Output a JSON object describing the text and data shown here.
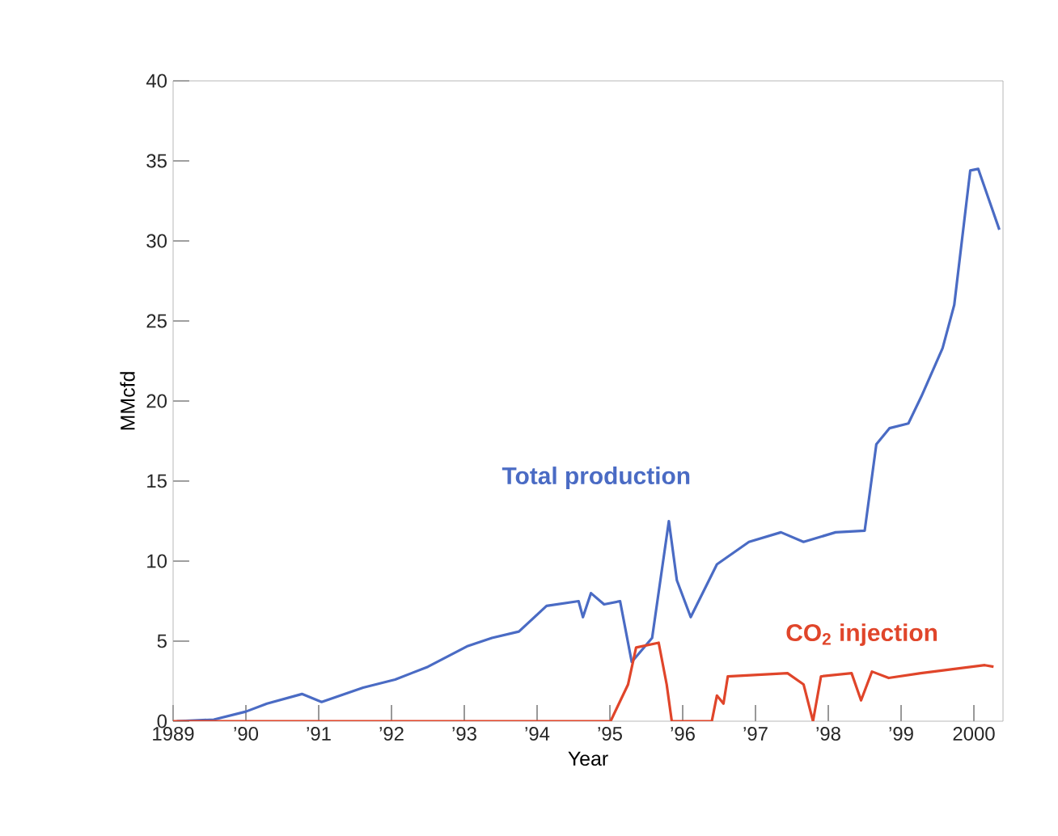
{
  "chart_data": {
    "type": "line",
    "xlabel": "Year",
    "ylabel": "MMcfd",
    "xlim": [
      1989,
      2000.4
    ],
    "ylim": [
      0,
      40
    ],
    "xticks": [
      1989,
      {
        "value": 1990,
        "label": "’90"
      },
      {
        "value": 1991,
        "label": "’91"
      },
      {
        "value": 1992,
        "label": "’92"
      },
      {
        "value": 1993,
        "label": "’93"
      },
      {
        "value": 1994,
        "label": "’94"
      },
      {
        "value": 1995,
        "label": "’95"
      },
      {
        "value": 1996,
        "label": "’96"
      },
      {
        "value": 1997,
        "label": "’97"
      },
      {
        "value": 1998,
        "label": "’98"
      },
      {
        "value": 1999,
        "label": "’99"
      },
      2000
    ],
    "yticks": [
      0,
      5,
      10,
      15,
      20,
      25,
      30,
      35,
      40
    ],
    "series": [
      {
        "name": "Total production",
        "color": "#4a6bc4",
        "x": [
          1989.05,
          1989.56,
          1990.0,
          1990.29,
          1990.77,
          1991.04,
          1991.61,
          1992.05,
          1992.5,
          1993.05,
          1993.38,
          1993.75,
          1994.13,
          1994.57,
          1994.63,
          1994.74,
          1994.92,
          1995.14,
          1995.3,
          1995.58,
          1995.81,
          1995.92,
          1996.11,
          1996.47,
          1996.91,
          1997.35,
          1997.66,
          1998.1,
          1998.5,
          1998.66,
          1998.84,
          1999.1,
          1999.28,
          1999.57,
          1999.73,
          1999.95,
          2000.06,
          2000.35
        ],
        "values": [
          0,
          0.1,
          0.6,
          1.1,
          1.7,
          1.2,
          2.1,
          2.6,
          3.4,
          4.7,
          5.2,
          5.6,
          7.2,
          7.5,
          6.5,
          8.0,
          7.3,
          7.5,
          3.7,
          5.2,
          12.5,
          8.8,
          6.5,
          9.8,
          11.2,
          11.8,
          11.2,
          11.8,
          11.9,
          17.3,
          18.3,
          18.6,
          20.3,
          23.3,
          26,
          34.4,
          34.5,
          30.7
        ]
      },
      {
        "name": "CO$_{2}$ injection",
        "color": "#e0452a",
        "x": [
          1989.0,
          1995.01,
          1995.25,
          1995.36,
          1995.67,
          1995.78,
          1995.85,
          1996.4,
          1996.47,
          1996.56,
          1996.62,
          1997.44,
          1997.66,
          1997.79,
          1997.9,
          1998.32,
          1998.45,
          1998.6,
          1998.83,
          1999.27,
          2000.15,
          2000.27
        ],
        "values": [
          0,
          0,
          2.3,
          4.6,
          4.9,
          2.3,
          0,
          0,
          1.6,
          1.1,
          2.8,
          3.0,
          2.3,
          0,
          2.8,
          3.0,
          1.3,
          3.1,
          2.7,
          3.0,
          3.5,
          3.4
        ]
      }
    ]
  }
}
